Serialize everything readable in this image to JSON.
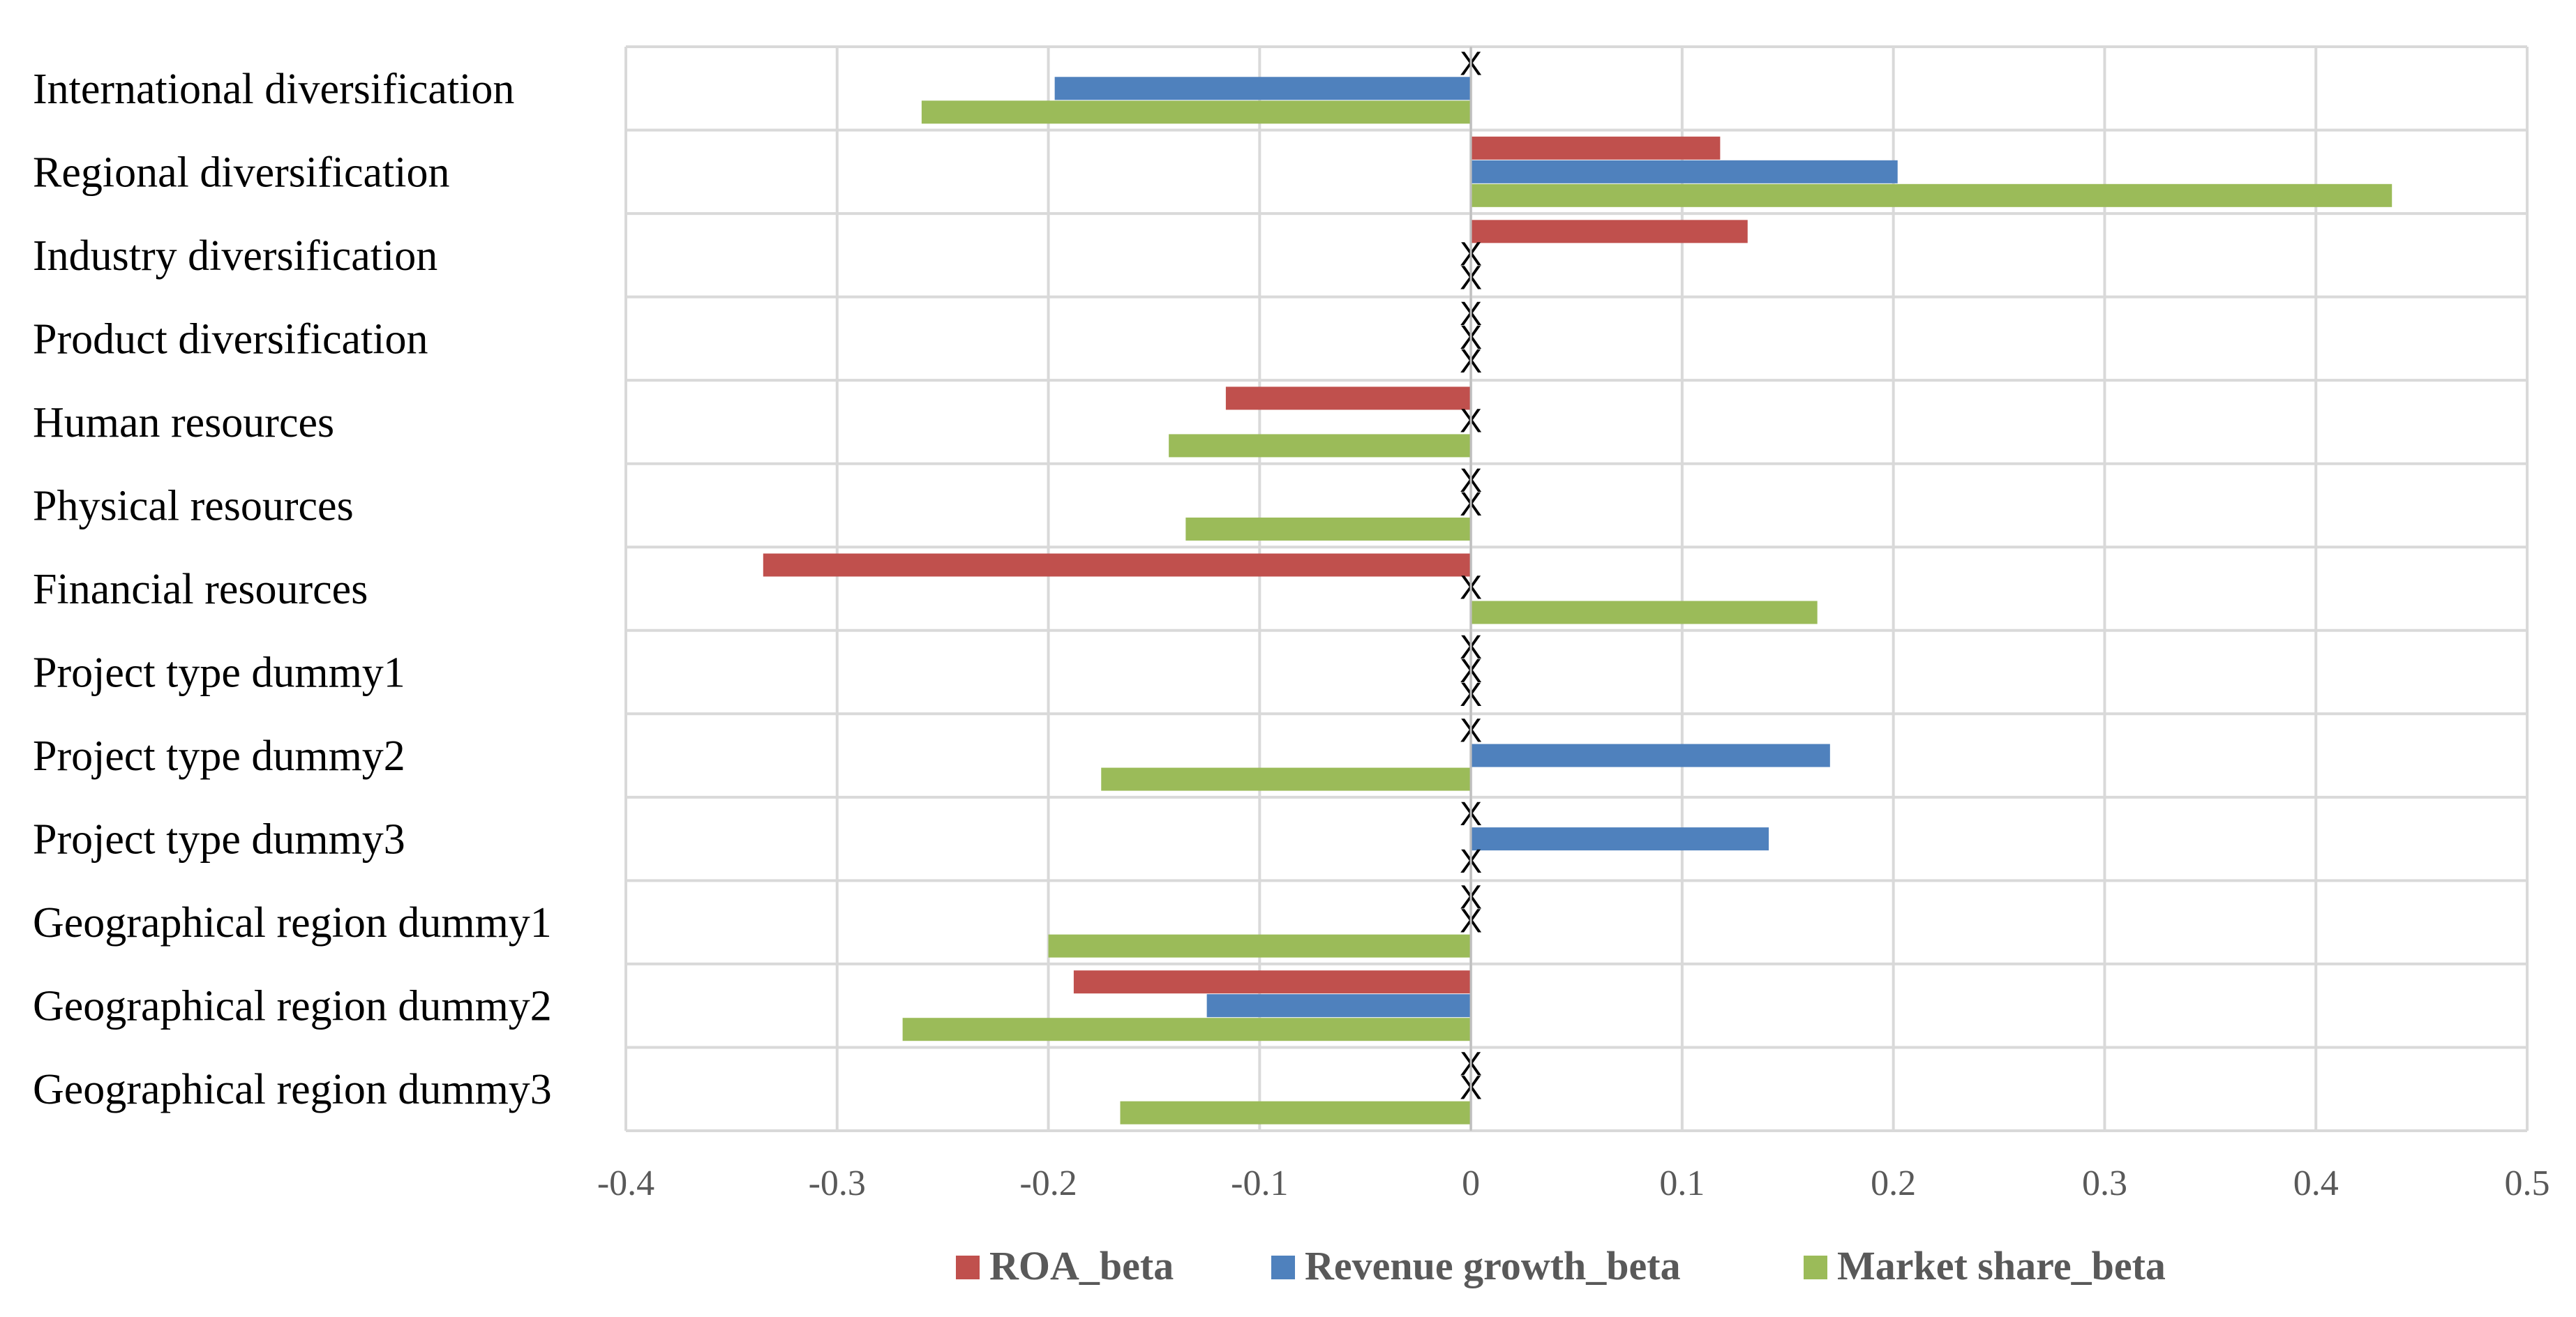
{
  "chart_data": {
    "type": "bar",
    "orientation": "horizontal",
    "title": "",
    "xlabel": "",
    "ylabel": "",
    "xlim": [
      -0.4,
      0.5
    ],
    "x_ticks": [
      "-0.4",
      "-0.3",
      "-0.2",
      "-0.1",
      "0",
      "0.1",
      "0.2",
      "0.3",
      "0.4",
      "0.5"
    ],
    "grid": true,
    "legend_position": "bottom",
    "missing_marker": "X",
    "categories": [
      "International diversification",
      "Regional diversification",
      "Industry diversification",
      "Product diversification",
      "Human resources",
      "Physical resources",
      "Financial resources",
      "Project type dummy1",
      "Project type dummy2",
      "Project type dummy3",
      "Geographical region dummy1",
      "Geographical region dummy2",
      "Geographical region dummy3"
    ],
    "series": [
      {
        "name": "ROA_beta",
        "color": "#C0504D",
        "values": [
          null,
          0.118,
          0.131,
          null,
          -0.116,
          null,
          -0.335,
          null,
          null,
          null,
          null,
          -0.188,
          null
        ]
      },
      {
        "name": "Revenue growth_beta",
        "color": "#4F81BD",
        "values": [
          -0.197,
          0.202,
          null,
          null,
          null,
          null,
          null,
          null,
          0.17,
          0.141,
          null,
          -0.125,
          null
        ]
      },
      {
        "name": "Market share_beta",
        "color": "#9BBB59",
        "values": [
          -0.26,
          0.436,
          null,
          null,
          -0.143,
          -0.135,
          0.164,
          null,
          -0.175,
          null,
          -0.2,
          -0.269,
          -0.166
        ]
      }
    ]
  }
}
